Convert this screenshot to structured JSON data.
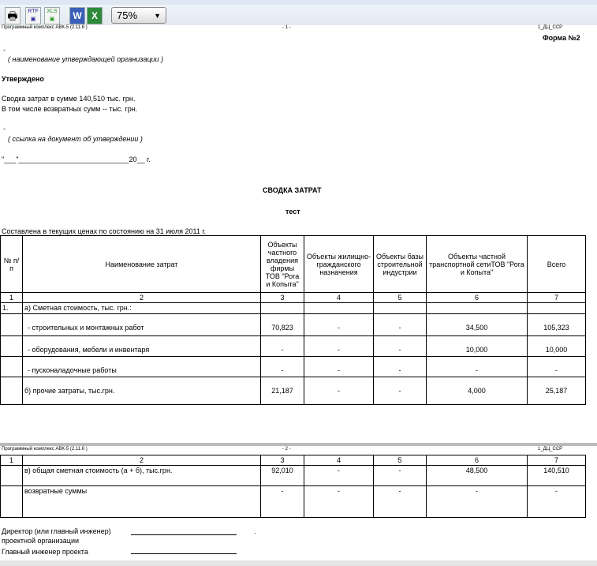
{
  "toolbar": {
    "print_icon": "printer-icon",
    "rtf": "RTF",
    "xls": "XLS",
    "word_icon": "word-icon",
    "excel_icon": "excel-icon",
    "zoom": "75%"
  },
  "page1": {
    "program": "Программный комплекс АВК-5 (2.11.6 )",
    "page_no": "- 1 -",
    "code": "1_ДЦ_ССР",
    "form": "Форма №2",
    "dash": "-",
    "org_caption": "( наименование утверждающей организации )",
    "approved": "Утверждено",
    "sum_line": "Сводка затрат в сумме  140,510 тыс. грн.",
    "return_line": "В том числе возвратных сумм  -- тыс. грн.",
    "dash2": "-",
    "doc_caption": "( ссылка на документ об утверждении )",
    "date_line": "\"___\"____________________________20__ г.",
    "title": "СВОДКА  ЗАТРАТ",
    "subtitle": "тест",
    "composed": "Составлена в текущих ценах по состоянию на        31  июля  2011  г."
  },
  "table": {
    "headers": [
      "№ п/п",
      "Наименование  затрат",
      "Объекты частного владения фирмы ТОВ \"Рога и Копыта\"",
      "Объекты жилищно-гражданского назначения",
      "Объекты базы строительной индустрии",
      "Объекты частной транспортной сетиТОВ \"Рога и Копыта\"",
      "Всего"
    ],
    "numbers": [
      "1",
      "2",
      "3",
      "4",
      "5",
      "6",
      "7"
    ],
    "rows": [
      [
        "1.",
        "а) Сметная стоимость, тыс. грн.:",
        "",
        "",
        "",
        "",
        ""
      ],
      [
        "",
        "- строительных и монтажных работ",
        "70,823",
        "-",
        "-",
        "34,500",
        "105,323"
      ],
      [
        "",
        "- оборудования, мебели и инвентаря",
        "-",
        "-",
        "-",
        "10,000",
        "10,000"
      ],
      [
        "",
        "- пусконаладочные работы",
        "-",
        "-",
        "-",
        "-",
        "-"
      ],
      [
        "",
        "б) прочие затраты, тыс.грн.",
        "21,187",
        "-",
        "-",
        "4,000",
        "25,187"
      ]
    ]
  },
  "page2": {
    "program": "Программный комплекс АВК-5 (2.11.6 )",
    "page_no": "- 2 -",
    "code": "1_ДЦ_ССР",
    "rows": [
      [
        "",
        "в) общая сметная стоимость (а + б), тыс.грн.",
        "92,010",
        "-",
        "-",
        "48,500",
        "140,510"
      ],
      [
        "",
        "возвратные суммы",
        "-",
        "-",
        "-",
        "-",
        "-"
      ]
    ]
  },
  "signatures": {
    "director": "Директор (или главный инженер)",
    "director2": "проектной организации",
    "dot": ".",
    "chief": "Главный инженер проекта"
  }
}
